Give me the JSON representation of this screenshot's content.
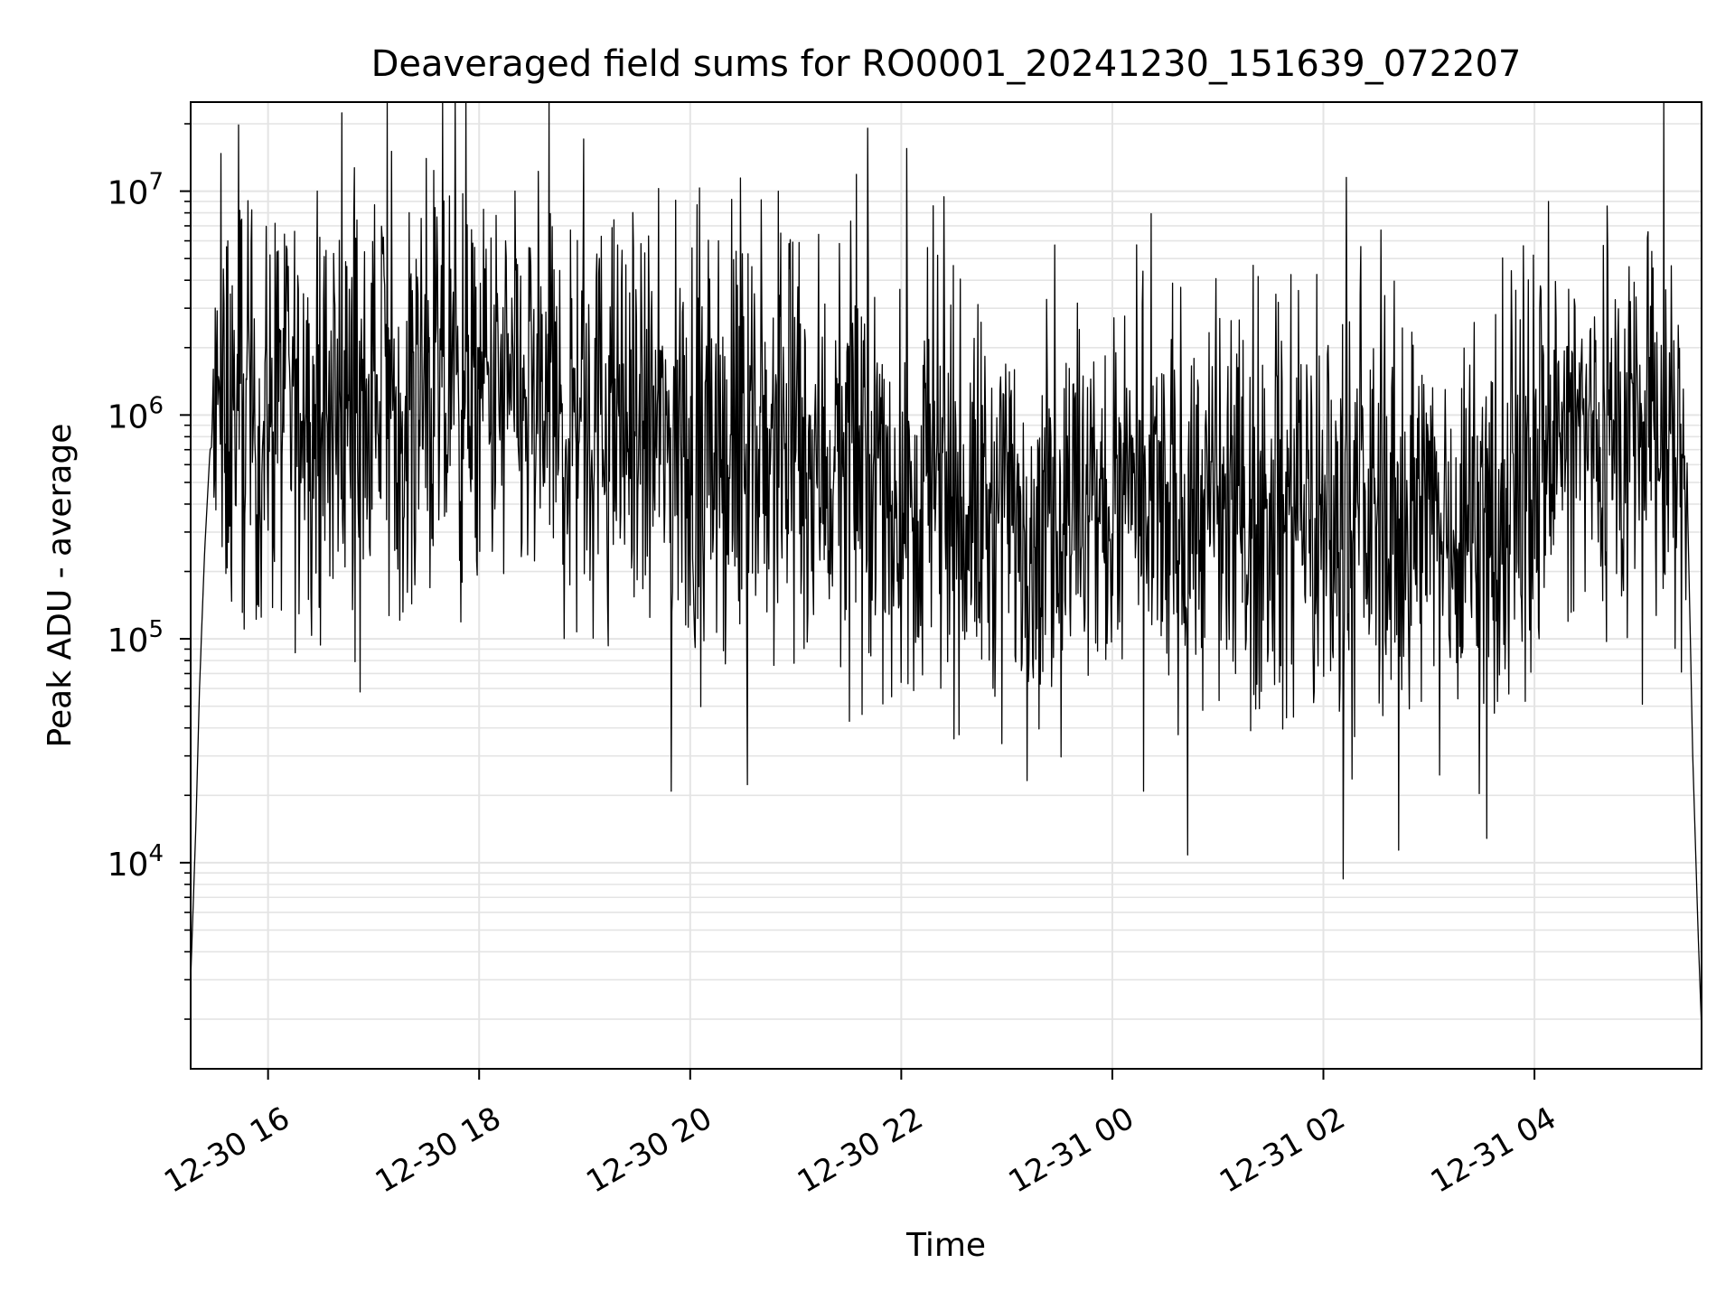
{
  "chart_data": {
    "type": "line",
    "title": "Deaveraged field sums for RO0001_20241230_151639_072207",
    "xlabel": "Time",
    "ylabel": "Peak ADU - average",
    "yscale": "log",
    "xlim": [
      "2024-12-30 15:16",
      "2024-12-31 05:35"
    ],
    "ylim": [
      1200,
      25000000
    ],
    "grid": true,
    "grid_which": "both",
    "line_color": "#000000",
    "x_ticks": [
      {
        "t": "2024-12-30 16:00",
        "label": "12-30 16"
      },
      {
        "t": "2024-12-30 18:00",
        "label": "12-30 18"
      },
      {
        "t": "2024-12-30 20:00",
        "label": "12-30 20"
      },
      {
        "t": "2024-12-30 22:00",
        "label": "12-30 22"
      },
      {
        "t": "2024-12-31 00:00",
        "label": "12-31 00"
      },
      {
        "t": "2024-12-31 02:00",
        "label": "12-31 02"
      },
      {
        "t": "2024-12-31 04:00",
        "label": "12-31 04"
      }
    ],
    "y_ticks": [
      {
        "value": 10000,
        "base": "10",
        "exp": "4"
      },
      {
        "value": 100000,
        "base": "10",
        "exp": "5"
      },
      {
        "value": 1000000,
        "base": "10",
        "exp": "6"
      },
      {
        "value": 10000000,
        "base": "10",
        "exp": "7"
      }
    ],
    "series": [
      {
        "profile": [
          [
            "2024-12-30 15:16",
            3000
          ],
          [
            "2024-12-30 15:19",
            15000
          ],
          [
            "2024-12-30 15:21",
            60000
          ],
          [
            "2024-12-30 15:24",
            250000
          ],
          [
            "2024-12-30 15:27",
            700000
          ],
          [
            "2024-12-30 15:35",
            900000
          ],
          [
            "2024-12-30 16:00",
            1000000
          ],
          [
            "2024-12-30 17:00",
            1200000
          ],
          [
            "2024-12-30 18:00",
            1100000
          ],
          [
            "2024-12-30 19:00",
            1000000
          ],
          [
            "2024-12-30 19:30",
            850000
          ],
          [
            "2024-12-30 20:00",
            700000
          ],
          [
            "2024-12-30 21:00",
            700000
          ],
          [
            "2024-12-30 21:40",
            550000
          ],
          [
            "2024-12-30 22:00",
            450000
          ],
          [
            "2024-12-30 23:00",
            350000
          ],
          [
            "2024-12-31 00:00",
            360000
          ],
          [
            "2024-12-31 01:00",
            370000
          ],
          [
            "2024-12-31 02:00",
            350000
          ],
          [
            "2024-12-31 03:00",
            330000
          ],
          [
            "2024-12-31 03:50",
            400000
          ],
          [
            "2024-12-31 04:00",
            750000
          ],
          [
            "2024-12-31 04:30",
            850000
          ],
          [
            "2024-12-31 05:00",
            850000
          ],
          [
            "2024-12-31 05:20",
            700000
          ],
          [
            "2024-12-31 05:27",
            400000
          ],
          [
            "2024-12-31 05:30",
            30000
          ],
          [
            "2024-12-31 05:33",
            5000
          ],
          [
            "2024-12-31 05:35",
            1800
          ]
        ],
        "spikes": [
          [
            "2024-12-30 15:37",
            6000000
          ],
          [
            "2024-12-30 15:44",
            8200000
          ],
          [
            "2024-12-30 17:05",
            6200000
          ],
          [
            "2024-12-30 17:30",
            14000000
          ],
          [
            "2024-12-30 18:15",
            6000000
          ],
          [
            "2024-12-30 18:52",
            6700000
          ],
          [
            "2024-12-30 21:02",
            5900000
          ],
          [
            "2024-12-30 22:03",
            15500000
          ],
          [
            "2024-12-30 22:15",
            5600000
          ],
          [
            "2024-12-30 22:18",
            8600000
          ],
          [
            "2024-12-31 04:54",
            4600000
          ],
          [
            "2024-12-30 15:56",
            125000
          ],
          [
            "2024-12-30 16:48",
            135000
          ],
          [
            "2024-12-30 20:08",
            98000
          ],
          [
            "2024-12-30 22:04",
            63000
          ],
          [
            "2024-12-30 23:15",
            67000
          ],
          [
            "2024-12-31 00:32",
            69000
          ],
          [
            "2024-12-31 01:10",
            70000
          ],
          [
            "2024-12-31 02:00",
            68000
          ],
          [
            "2024-12-31 03:40",
            69000
          ],
          [
            "2024-12-31 03:58",
            71000
          ]
        ]
      }
    ]
  }
}
